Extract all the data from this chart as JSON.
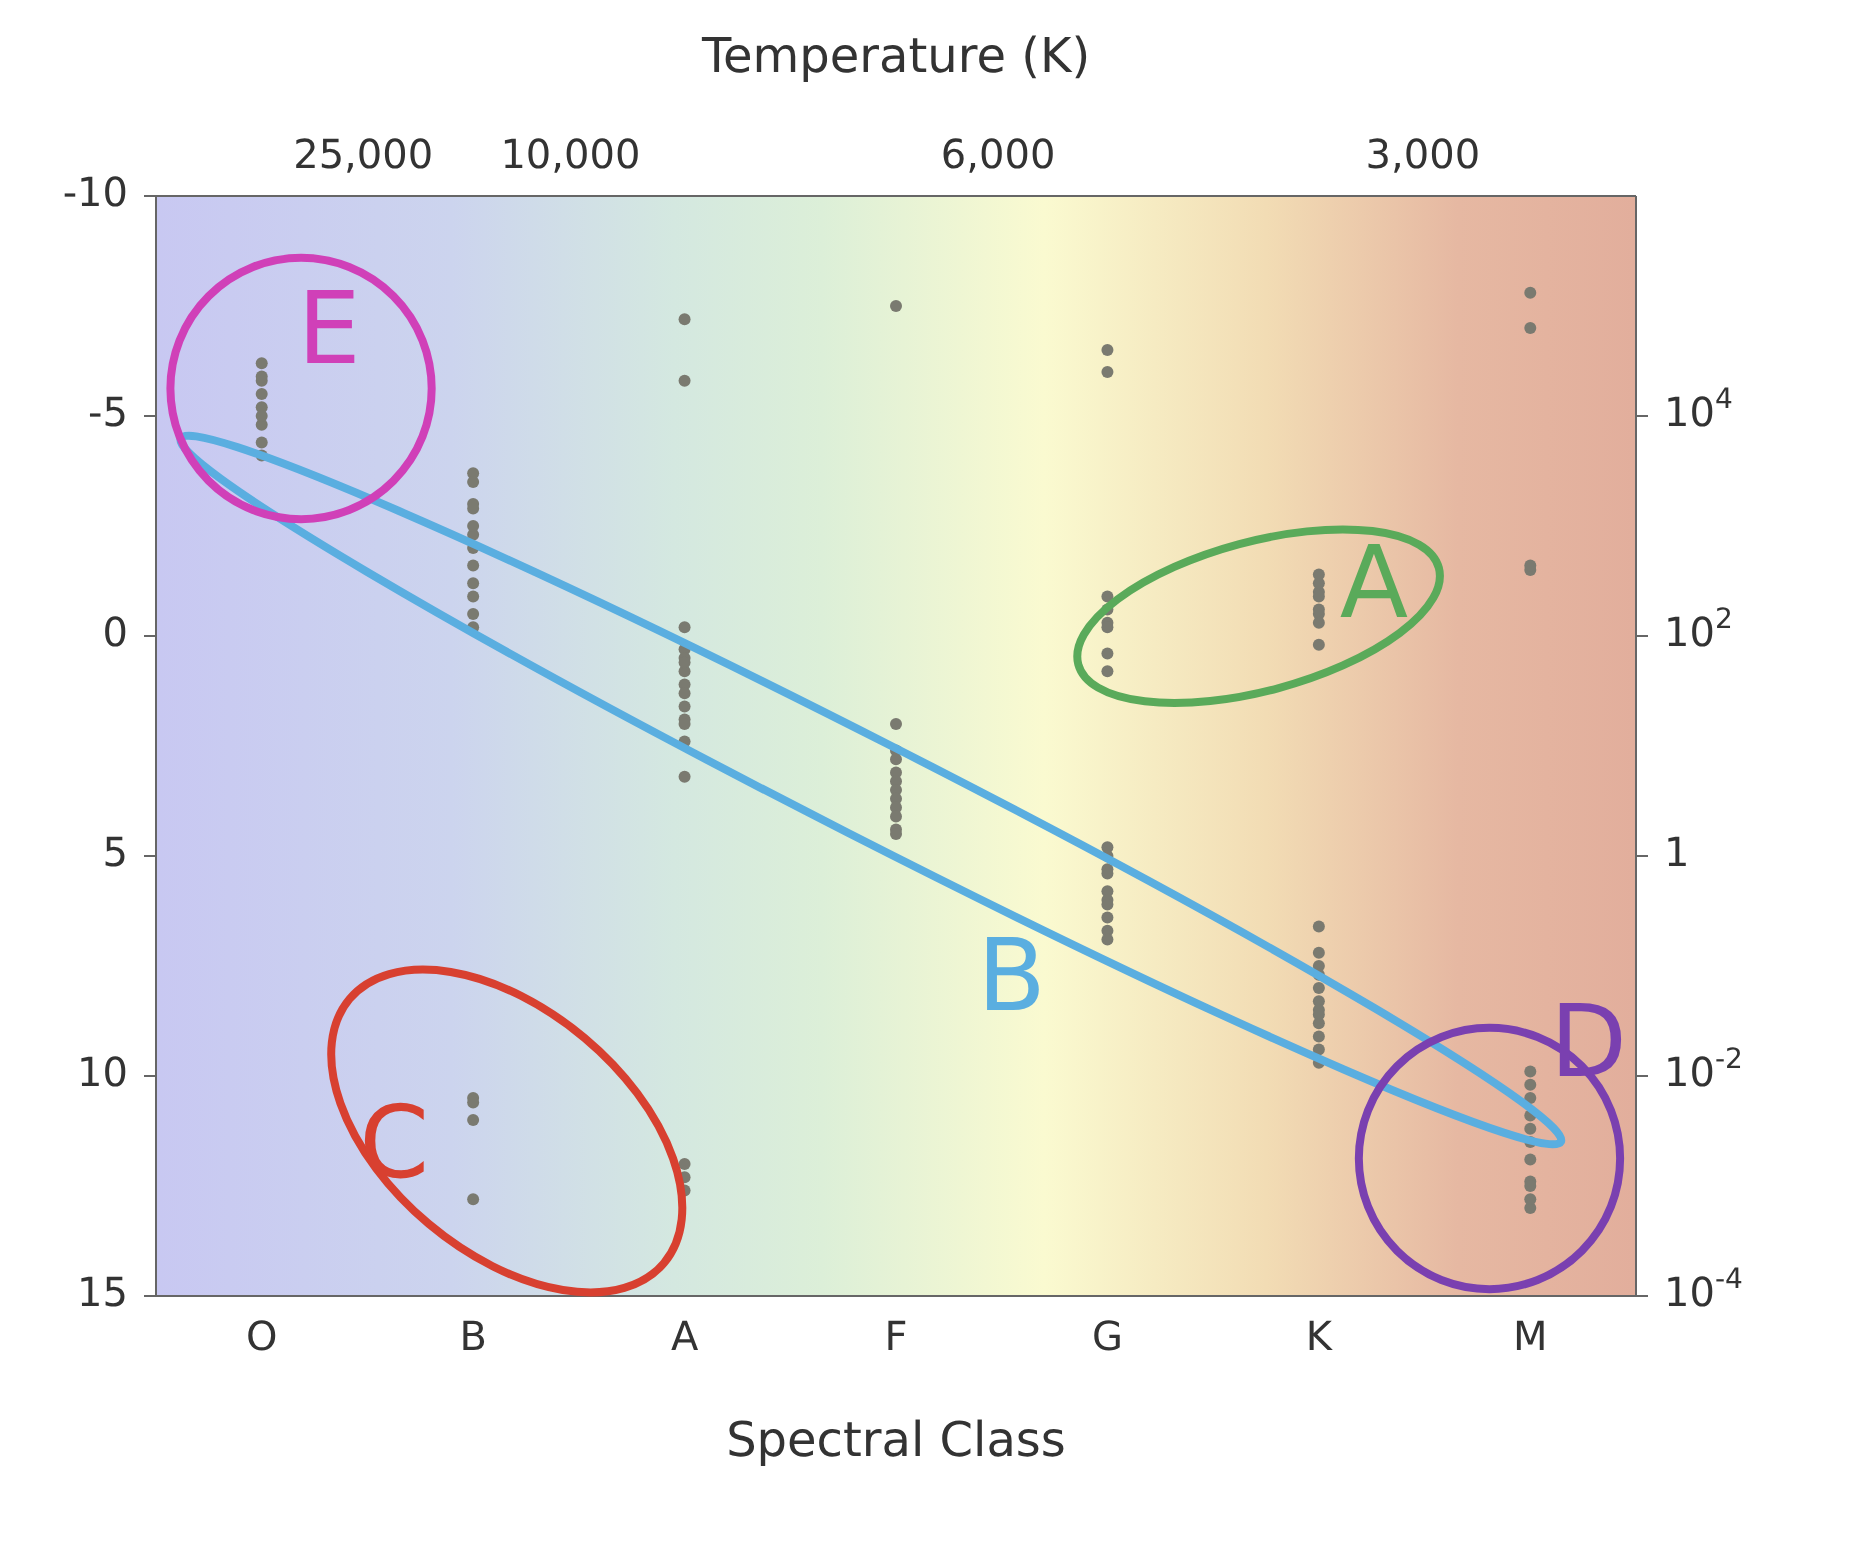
{
  "chart_data": {
    "type": "scatter",
    "xlabel": "Spectral Class",
    "marker": "circle",
    "categories": [
      "O",
      "B",
      "A",
      "F",
      "G",
      "K",
      "M"
    ],
    "ylim": [
      15,
      -10
    ],
    "yticks": [
      -10,
      -5,
      0,
      5,
      10,
      15
    ],
    "y2lim": [
      0.0001,
      1000000
    ],
    "log": "y2",
    "y2ticks": [
      {
        "value": 0.0001,
        "label": "10$^{-4}$"
      },
      {
        "value": 0.01,
        "label": "10$^{-2}$"
      },
      1,
      {
        "value": 100,
        "label": "10$^{2}$"
      },
      {
        "value": 10000,
        "label": "10$^{4}$"
      }
    ],
    "annotations": [
      "Temperature (K)",
      "25,000",
      "10,000",
      "6,000",
      "3,000",
      "A",
      "B",
      "C",
      "D",
      "E"
    ],
    "series": [
      {
        "color": "#7a7a70",
        "x": [
          "O",
          "O",
          "O",
          "O",
          "O",
          "O",
          "O",
          "O",
          "O",
          "B",
          "B",
          "B",
          "B",
          "B",
          "B",
          "B",
          "B",
          "B",
          "B",
          "B",
          "B",
          "B",
          "B",
          "B",
          "B",
          "A",
          "A",
          "A",
          "A",
          "A",
          "A",
          "A",
          "A",
          "A",
          "A",
          "A",
          "A",
          "A",
          "A",
          "A",
          "A",
          "A",
          "F",
          "F",
          "F",
          "F",
          "F",
          "F",
          "F",
          "F",
          "F",
          "F",
          "F",
          "F",
          "G",
          "G",
          "G",
          "G",
          "G",
          "G",
          "G",
          "G",
          "G",
          "G",
          "G",
          "G",
          "G",
          "G",
          "G",
          "G",
          "G",
          "G",
          "K",
          "K",
          "K",
          "K",
          "K",
          "K",
          "K",
          "K",
          "K",
          "K",
          "K",
          "K",
          "K",
          "K",
          "K",
          "K",
          "K",
          "K",
          "K",
          "K",
          "M",
          "M",
          "M",
          "M",
          "M",
          "M",
          "M",
          "M",
          "M",
          "M",
          "M",
          "M",
          "M",
          "M",
          "M"
        ],
        "values": [
          -6.2,
          -5.8,
          -5.5,
          -5.9,
          -5.2,
          -4.8,
          -5.0,
          -4.4,
          -4.1,
          -3.7,
          -3.5,
          -3.0,
          -2.9,
          -2.3,
          -2.0,
          -1.6,
          -1.2,
          -0.9,
          -0.5,
          -0.2,
          -2.5,
          10.5,
          11.0,
          10.6,
          12.8,
          -0.2,
          0.3,
          0.5,
          0.8,
          1.1,
          1.3,
          1.6,
          1.9,
          2.0,
          2.4,
          0.6,
          3.2,
          12.0,
          12.6,
          12.3,
          -7.2,
          -5.8,
          2.6,
          2.8,
          3.1,
          3.3,
          3.5,
          3.7,
          3.9,
          4.1,
          4.4,
          4.5,
          2.0,
          -7.5,
          4.8,
          5.0,
          5.3,
          5.4,
          5.8,
          6.0,
          6.1,
          6.4,
          6.7,
          6.9,
          -0.3,
          -0.6,
          -0.2,
          -0.9,
          0.4,
          0.8,
          -6.5,
          -6.0,
          7.2,
          7.5,
          7.7,
          8.0,
          8.3,
          8.5,
          8.8,
          9.1,
          9.4,
          9.7,
          6.6,
          8.6,
          -0.5,
          -1.0,
          -0.3,
          -1.2,
          -0.6,
          -1.4,
          -0.9,
          0.2,
          9.9,
          10.2,
          10.5,
          10.9,
          11.2,
          11.5,
          11.9,
          12.4,
          13.0,
          12.5,
          12.8,
          -1.5,
          -1.6,
          -7.0,
          -7.8
        ]
      }
    ]
  }
}
